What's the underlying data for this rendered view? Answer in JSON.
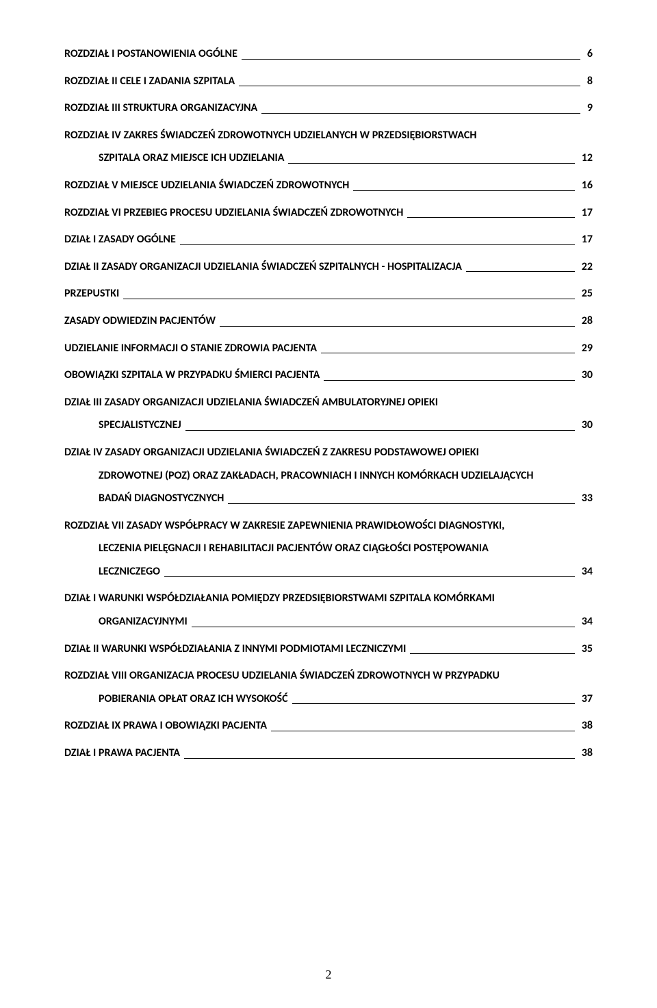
{
  "page_number": "2",
  "entries": [
    {
      "lines": [
        "ROZDZIAŁ I POSTANOWIENIA OGÓLNE"
      ],
      "page": "6",
      "indent": 0
    },
    {
      "lines": [
        "ROZDZIAŁ II CELE I ZADANIA SZPITALA"
      ],
      "page": "8",
      "indent": 0
    },
    {
      "lines": [
        "ROZDZIAŁ III STRUKTURA ORGANIZACYJNA"
      ],
      "page": "9",
      "indent": 0
    },
    {
      "lines": [
        "ROZDZIAŁ IV ZAKRES ŚWIADCZEŃ ZDROWOTNYCH UDZIELANYCH W PRZEDSIĘBIORSTWACH",
        "SZPITALA ORAZ MIEJSCE ICH UDZIELANIA"
      ],
      "page": "12",
      "indent": 50
    },
    {
      "lines": [
        "ROZDZIAŁ V MIEJSCE UDZIELANIA ŚWIADCZEŃ ZDROWOTNYCH"
      ],
      "page": "16",
      "indent": 0
    },
    {
      "lines": [
        "ROZDZIAŁ VI PRZEBIEG PROCESU UDZIELANIA ŚWIADCZEŃ ZDROWOTNYCH"
      ],
      "page": "17",
      "indent": 0
    },
    {
      "lines": [
        "DZIAŁ I ZASADY OGÓLNE"
      ],
      "page": "17",
      "indent": 0
    },
    {
      "lines": [
        "DZIAŁ II ZASADY ORGANIZACJI UDZIELANIA ŚWIADCZEŃ SZPITALNYCH  - HOSPITALIZACJA"
      ],
      "page": "22",
      "indent": 0
    },
    {
      "lines": [
        "PRZEPUSTKI"
      ],
      "page": "25",
      "indent": 0
    },
    {
      "lines": [
        "ZASADY ODWIEDZIN PACJENTÓW"
      ],
      "page": "28",
      "indent": 0
    },
    {
      "lines": [
        "UDZIELANIE INFORMACJI O STANIE ZDROWIA PACJENTA"
      ],
      "page": "29",
      "indent": 0
    },
    {
      "lines": [
        "OBOWIĄZKI SZPITALA W PRZYPADKU ŚMIERCI PACJENTA"
      ],
      "page": "30",
      "indent": 0
    },
    {
      "lines": [
        "DZIAŁ III ZASADY ORGANIZACJI UDZIELANIA ŚWIADCZEŃ AMBULATORYJNEJ OPIEKI",
        "SPECJALISTYCZNEJ"
      ],
      "page": "30",
      "indent": 50
    },
    {
      "lines": [
        "DZIAŁ IV ZASADY ORGANIZACJI UDZIELANIA ŚWIADCZEŃ Z ZAKRESU PODSTAWOWEJ OPIEKI",
        "ZDROWOTNEJ (POZ) ORAZ ZAKŁADACH, PRACOWNIACH I INNYCH KOMÓRKACH UDZIELAJĄCYCH",
        "BADAŃ DIAGNOSTYCZNYCH"
      ],
      "page": "33",
      "indent": 50
    },
    {
      "lines": [
        "ROZDZIAŁ VII ZASADY WSPÓŁPRACY W ZAKRESIE ZAPEWNIENIA PRAWIDŁOWOŚCI DIAGNOSTYKI,",
        "LECZENIA PIELĘGNACJI  I REHABILITACJI PACJENTÓW ORAZ CIĄGŁOŚCI POSTĘPOWANIA",
        "LECZNICZEGO"
      ],
      "page": "34",
      "indent": 50
    },
    {
      "lines": [
        "DZIAŁ I WARUNKI WSPÓŁDZIAŁANIA POMIĘDZY PRZEDSIĘBIORSTWAMI SZPITALA KOMÓRKAMI",
        "ORGANIZACYJNYMI"
      ],
      "page": "34",
      "indent": 50
    },
    {
      "lines": [
        "DZIAŁ II WARUNKI WSPÓŁDZIAŁANIA Z INNYMI PODMIOTAMI LECZNICZYMI"
      ],
      "page": "35",
      "indent": 0
    },
    {
      "lines": [
        "ROZDZIAŁ VIII ORGANIZACJA PROCESU UDZIELANIA ŚWIADCZEŃ ZDROWOTNYCH W PRZYPADKU",
        "POBIERANIA OPŁAT ORAZ ICH WYSOKOŚĆ"
      ],
      "page": "37",
      "indent": 50
    },
    {
      "lines": [
        "ROZDZIAŁ IX PRAWA I OBOWIĄZKI PACJENTA"
      ],
      "page": "38",
      "indent": 0
    },
    {
      "lines": [
        "DZIAŁ I PRAWA PACJENTA"
      ],
      "page": "38",
      "indent": 0
    }
  ]
}
